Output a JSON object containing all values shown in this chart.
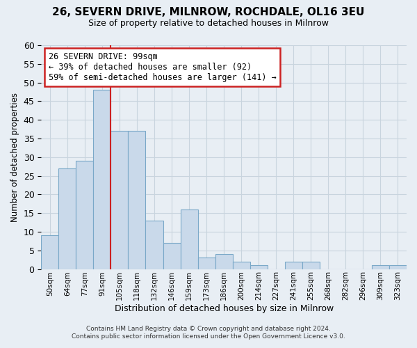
{
  "title": "26, SEVERN DRIVE, MILNROW, ROCHDALE, OL16 3EU",
  "subtitle": "Size of property relative to detached houses in Milnrow",
  "xlabel": "Distribution of detached houses by size in Milnrow",
  "ylabel": "Number of detached properties",
  "bin_labels": [
    "50sqm",
    "64sqm",
    "77sqm",
    "91sqm",
    "105sqm",
    "118sqm",
    "132sqm",
    "146sqm",
    "159sqm",
    "173sqm",
    "186sqm",
    "200sqm",
    "214sqm",
    "227sqm",
    "241sqm",
    "255sqm",
    "268sqm",
    "282sqm",
    "296sqm",
    "309sqm",
    "323sqm"
  ],
  "bar_values": [
    9,
    27,
    29,
    48,
    37,
    37,
    13,
    7,
    16,
    3,
    4,
    2,
    1,
    0,
    2,
    2,
    0,
    0,
    0,
    1,
    1
  ],
  "bar_color": "#c9d9ea",
  "bar_edge_color": "#7aa8c8",
  "vline_x_index": 3,
  "vline_color": "#cc2222",
  "annotation_title": "26 SEVERN DRIVE: 99sqm",
  "annotation_line1": "← 39% of detached houses are smaller (92)",
  "annotation_line2": "59% of semi-detached houses are larger (141) →",
  "annotation_box_color": "#ffffff",
  "annotation_box_edge_color": "#cc2222",
  "ylim": [
    0,
    60
  ],
  "yticks": [
    0,
    5,
    10,
    15,
    20,
    25,
    30,
    35,
    40,
    45,
    50,
    55,
    60
  ],
  "footer_line1": "Contains HM Land Registry data © Crown copyright and database right 2024.",
  "footer_line2": "Contains public sector information licensed under the Open Government Licence v3.0.",
  "bg_color": "#e8eef4",
  "plot_bg_color": "#e8eef4",
  "grid_color": "#c8d4de"
}
